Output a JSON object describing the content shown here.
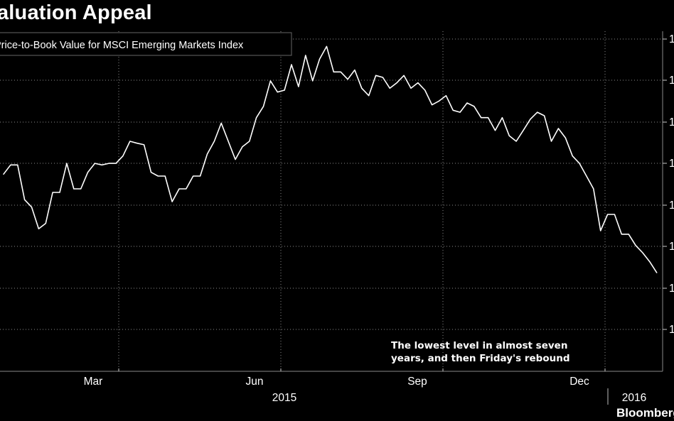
{
  "chart_data": {
    "type": "line",
    "title": "Valuation Appeal",
    "legend": "Price-to-Book Value for MSCI Emerging Markets Index",
    "annotation": [
      "The lowest level in almost seven",
      "years, and then Friday's rebound"
    ],
    "source": "Bloomberg",
    "x_ticks": [
      "Mar",
      "Jun",
      "Sep",
      "Dec"
    ],
    "year_labels": [
      "2015",
      "2016"
    ],
    "x_range": [
      0,
      280
    ],
    "y_range": [
      0,
      100
    ],
    "grid": true,
    "series": [
      {
        "name": "Price-to-Book Value for MSCI Emerging Markets Index",
        "color": "#ffffff",
        "points": [
          [
            0,
            57.7
          ],
          [
            3,
            60.6
          ],
          [
            6,
            60.6
          ],
          [
            9,
            49.7
          ],
          [
            12,
            47.4
          ],
          [
            15,
            40.6
          ],
          [
            18,
            42.3
          ],
          [
            21,
            52.0
          ],
          [
            24,
            52.0
          ],
          [
            27,
            61.1
          ],
          [
            30,
            53.1
          ],
          [
            33,
            53.1
          ],
          [
            36,
            58.3
          ],
          [
            39,
            61.1
          ],
          [
            42,
            60.6
          ],
          [
            45,
            61.1
          ],
          [
            48,
            61.1
          ],
          [
            51,
            63.4
          ],
          [
            54,
            68.0
          ],
          [
            57,
            67.4
          ],
          [
            60,
            66.9
          ],
          [
            63,
            58.3
          ],
          [
            66,
            57.1
          ],
          [
            69,
            57.1
          ],
          [
            72,
            49.1
          ],
          [
            75,
            53.1
          ],
          [
            78,
            53.1
          ],
          [
            81,
            57.1
          ],
          [
            84,
            57.1
          ],
          [
            87,
            64.0
          ],
          [
            90,
            68.0
          ],
          [
            93,
            73.7
          ],
          [
            96,
            68.0
          ],
          [
            99,
            62.3
          ],
          [
            102,
            66.3
          ],
          [
            105,
            68.0
          ],
          [
            108,
            75.4
          ],
          [
            111,
            78.9
          ],
          [
            114,
            86.9
          ],
          [
            117,
            83.4
          ],
          [
            120,
            84.0
          ],
          [
            123,
            92.0
          ],
          [
            126,
            85.1
          ],
          [
            129,
            94.9
          ],
          [
            132,
            86.9
          ],
          [
            135,
            93.7
          ],
          [
            138,
            97.7
          ],
          [
            141,
            89.7
          ],
          [
            144,
            89.7
          ],
          [
            147,
            87.4
          ],
          [
            150,
            90.3
          ],
          [
            153,
            84.6
          ],
          [
            156,
            82.3
          ],
          [
            159,
            88.6
          ],
          [
            162,
            88.0
          ],
          [
            165,
            84.6
          ],
          [
            168,
            86.3
          ],
          [
            171,
            88.6
          ],
          [
            174,
            84.6
          ],
          [
            177,
            86.3
          ],
          [
            180,
            84.0
          ],
          [
            183,
            79.4
          ],
          [
            186,
            80.6
          ],
          [
            189,
            82.3
          ],
          [
            192,
            77.7
          ],
          [
            195,
            77.1
          ],
          [
            198,
            80.0
          ],
          [
            201,
            78.9
          ],
          [
            204,
            75.4
          ],
          [
            207,
            75.4
          ],
          [
            210,
            71.4
          ],
          [
            213,
            75.4
          ],
          [
            216,
            69.7
          ],
          [
            219,
            68.0
          ],
          [
            222,
            71.4
          ],
          [
            225,
            74.9
          ],
          [
            228,
            77.1
          ],
          [
            231,
            76.0
          ],
          [
            234,
            68.0
          ],
          [
            237,
            72.0
          ],
          [
            240,
            69.1
          ],
          [
            243,
            63.4
          ],
          [
            246,
            61.1
          ],
          [
            249,
            57.1
          ],
          [
            252,
            53.1
          ],
          [
            255,
            40.0
          ],
          [
            258,
            45.1
          ],
          [
            261,
            45.1
          ],
          [
            264,
            38.9
          ],
          [
            267,
            38.9
          ],
          [
            270,
            35.4
          ],
          [
            273,
            33.1
          ],
          [
            276,
            30.3
          ],
          [
            279,
            26.9
          ]
        ]
      }
    ]
  }
}
